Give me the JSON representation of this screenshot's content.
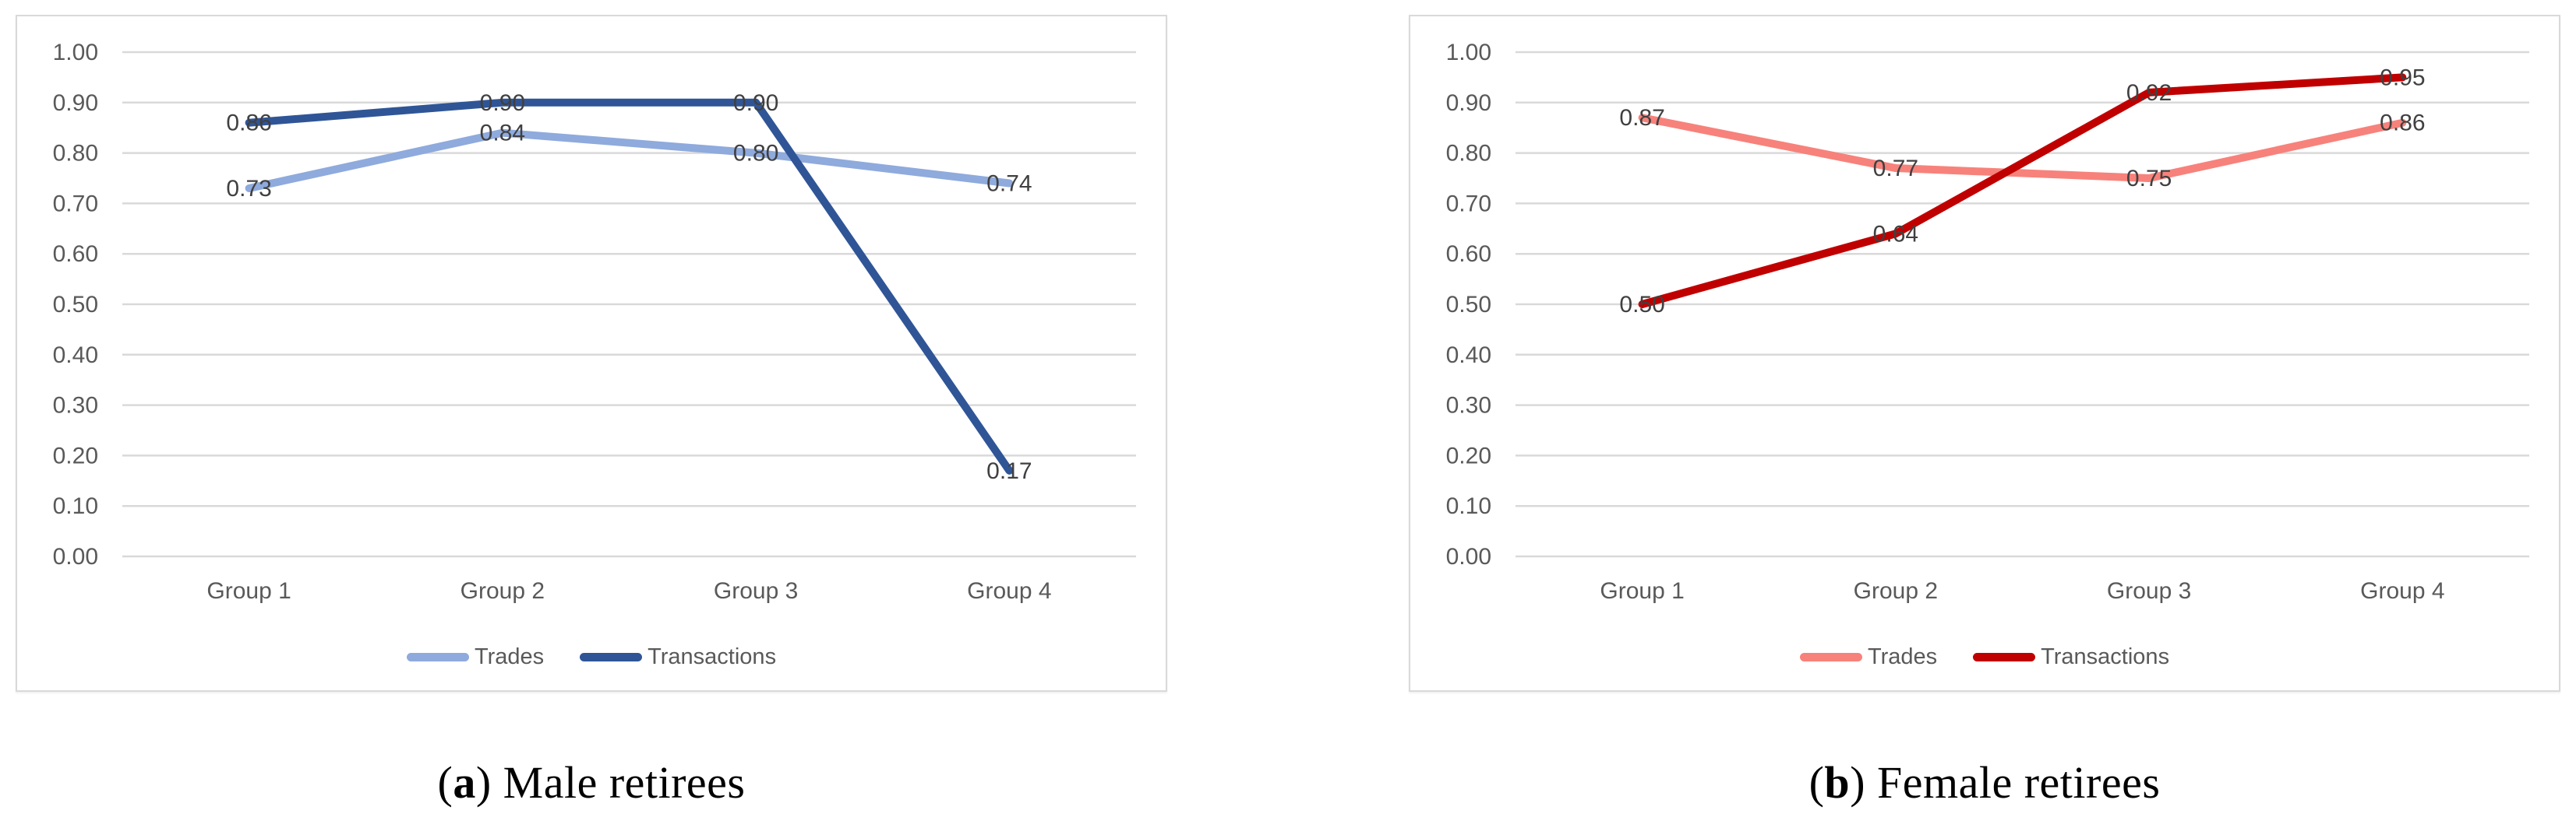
{
  "figure": {
    "background": "#ffffff",
    "grid_color": "#d9d9d9",
    "tick_text_color": "#595959",
    "data_label_color": "#404040",
    "caption_color": "#000000"
  },
  "chart_data": [
    {
      "type": "line",
      "panel": "a",
      "caption_letter": "a",
      "caption_text": "Male retirees",
      "categories": [
        "Group 1",
        "Group 2",
        "Group 3",
        "Group 4"
      ],
      "series": [
        {
          "name": "Trades",
          "color": "#8FAADC",
          "values": [
            0.73,
            0.84,
            0.8,
            0.74
          ]
        },
        {
          "name": "Transactions",
          "color": "#2F5597",
          "values": [
            0.86,
            0.9,
            0.9,
            0.17
          ]
        }
      ],
      "ylim": [
        0,
        1
      ],
      "y_tick_step": 0.1,
      "y_tick_labels": [
        "0.00",
        "0.10",
        "0.20",
        "0.30",
        "0.40",
        "0.50",
        "0.60",
        "0.70",
        "0.80",
        "0.90",
        "1.00"
      ],
      "grid": true,
      "data_labels": true,
      "data_label_position": "center",
      "legend_position": "bottom",
      "xlabel": "",
      "ylabel": ""
    },
    {
      "type": "line",
      "panel": "b",
      "caption_letter": "b",
      "caption_text": "Female retirees",
      "categories": [
        "Group 1",
        "Group 2",
        "Group 3",
        "Group 4"
      ],
      "series": [
        {
          "name": "Trades",
          "color": "#F7827B",
          "values": [
            0.87,
            0.77,
            0.75,
            0.86
          ]
        },
        {
          "name": "Transactions",
          "color": "#C00000",
          "values": [
            0.5,
            0.64,
            0.92,
            0.95
          ]
        }
      ],
      "ylim": [
        0,
        1
      ],
      "y_tick_step": 0.1,
      "y_tick_labels": [
        "0.00",
        "0.10",
        "0.20",
        "0.30",
        "0.40",
        "0.50",
        "0.60",
        "0.70",
        "0.80",
        "0.90",
        "1.00"
      ],
      "grid": true,
      "data_labels": true,
      "data_label_position": "center",
      "legend_position": "bottom",
      "xlabel": "",
      "ylabel": ""
    }
  ]
}
